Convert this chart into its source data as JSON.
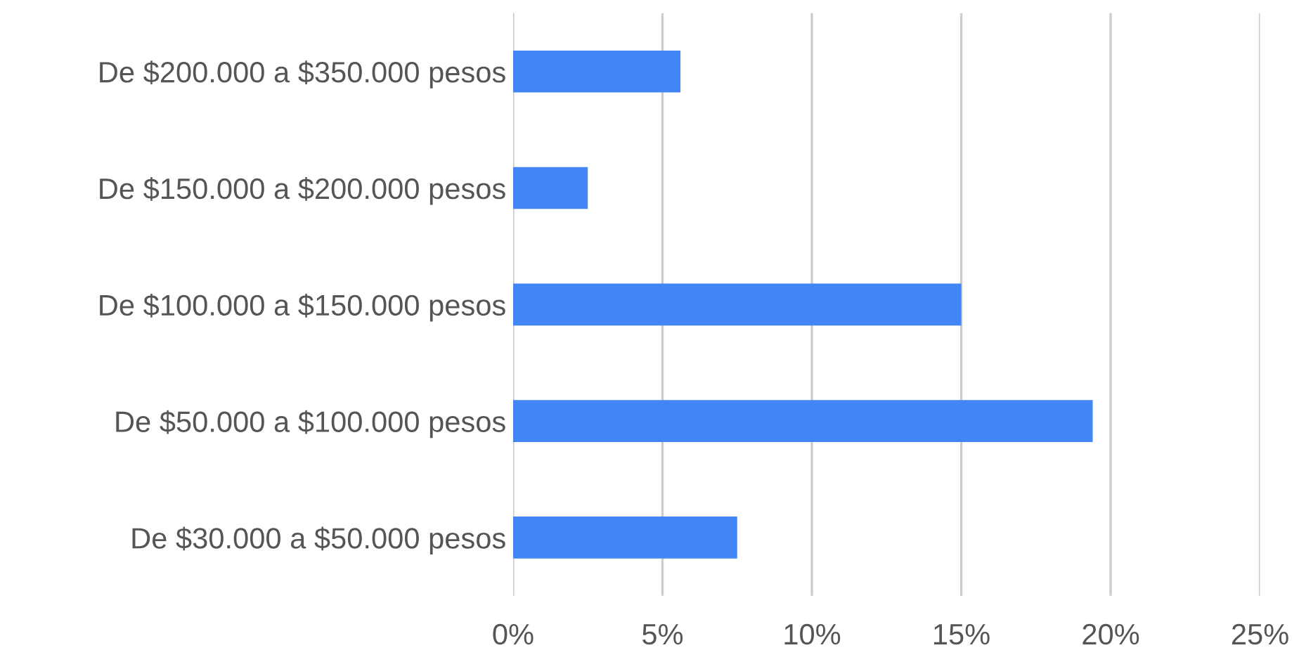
{
  "chart_data": {
    "type": "bar",
    "orientation": "horizontal",
    "categories": [
      "De $200.000 a $350.000 pesos",
      "De $150.000 a $200.000 pesos",
      "De $100.000 a $150.000 pesos",
      "De $50.000 a $100.000 pesos",
      "De $30.000 a $50.000 pesos"
    ],
    "values": [
      5.6,
      2.5,
      15.0,
      19.4,
      7.5
    ],
    "color": "#4285f4",
    "xlim": [
      0,
      25
    ],
    "xticks": [
      {
        "value": 0,
        "label": "0%"
      },
      {
        "value": 5,
        "label": "5%"
      },
      {
        "value": 10,
        "label": "10%"
      },
      {
        "value": 15,
        "label": "15%"
      },
      {
        "value": 20,
        "label": "20%"
      },
      {
        "value": 25,
        "label": "25%"
      }
    ],
    "grid": "x",
    "legend": false
  }
}
